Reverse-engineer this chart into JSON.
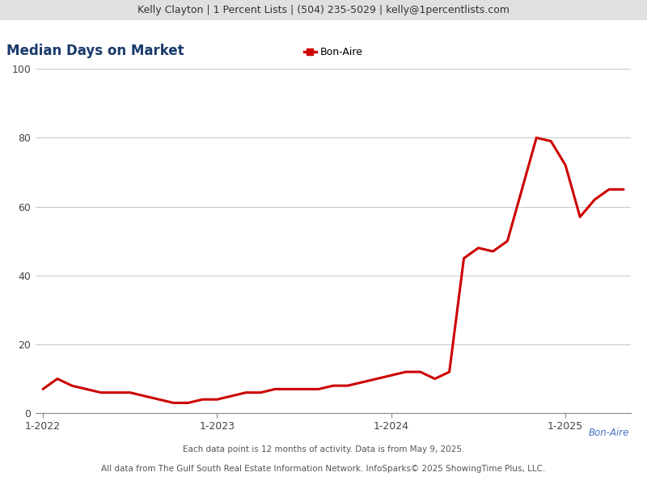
{
  "header_text": "Kelly Clayton | 1 Percent Lists | (504) 235-5029 | kelly@1percentlists.com",
  "title": "Median Days on Market",
  "legend_label": "Bon-Aire",
  "line_color": "#cc0000",
  "line_width": 2.2,
  "footer_text1": "Each data point is 12 months of activity. Data is from May 9, 2025.",
  "footer_text2": "All data from The Gulf South Real Estate Information Network. InfoSparks© 2025 ShowingTime Plus, LLC.",
  "watermark_text": "Bon-Aire",
  "watermark_color": "#4472c4",
  "x_tick_labels": [
    "1-2022",
    "1-2023",
    "1-2024",
    "1-2025"
  ],
  "x_tick_positions": [
    0,
    12,
    24,
    36
  ],
  "ylim": [
    0,
    100
  ],
  "yticks": [
    0,
    20,
    40,
    60,
    80,
    100
  ],
  "background_color": "#ffffff",
  "header_bg_color": "#e0e0e0",
  "title_color": "#1a3a6b",
  "title_fontsize": 12,
  "header_fontsize": 9,
  "grid_color": "#cccccc",
  "x_values": [
    0,
    1,
    2,
    3,
    4,
    5,
    6,
    7,
    8,
    9,
    10,
    11,
    12,
    13,
    14,
    15,
    16,
    17,
    18,
    19,
    20,
    21,
    22,
    23,
    24,
    25,
    26,
    27,
    28,
    29,
    30,
    31,
    32,
    33,
    34,
    35,
    36,
    37,
    38,
    39,
    40
  ],
  "y_values": [
    7,
    10,
    8,
    7,
    6,
    6,
    6,
    5,
    4,
    3,
    3,
    4,
    4,
    5,
    6,
    6,
    7,
    7,
    7,
    7,
    8,
    8,
    9,
    10,
    11,
    12,
    12,
    10,
    12,
    45,
    48,
    47,
    50,
    65,
    80,
    79,
    72,
    57,
    62,
    65,
    65
  ]
}
